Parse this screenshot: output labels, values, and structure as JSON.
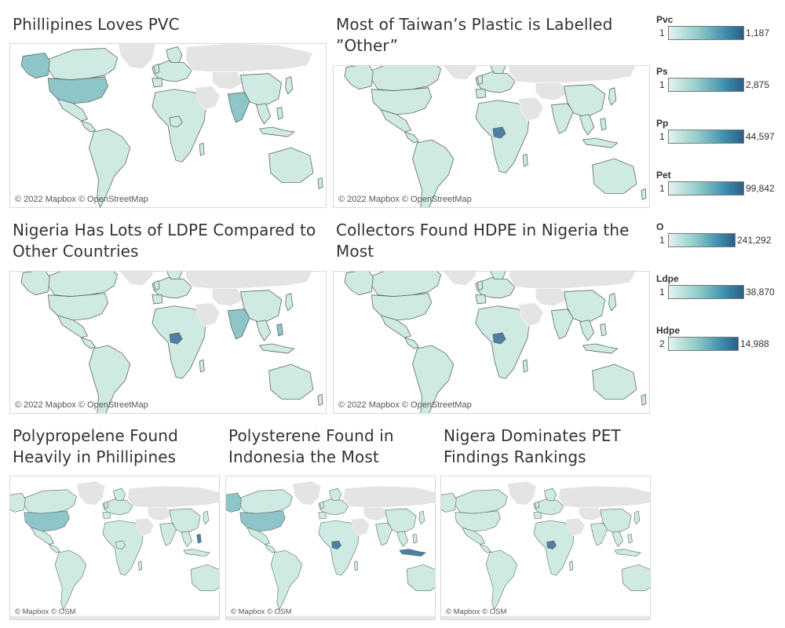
{
  "panels": [
    {
      "title_lines": [
        "Phillipines Loves PVC"
      ],
      "attribution": "© 2022 Mapbox © OpenStreetMap",
      "highlight": [
        "usa",
        "alaska",
        "india"
      ],
      "strong": []
    },
    {
      "title_lines": [
        "Most of Taiwan’s Plastic is Labelled",
        "”Other”"
      ],
      "attribution": "© 2022 Mapbox © OpenStreetMap",
      "highlight": [],
      "strong": [
        "nigeria"
      ]
    },
    {
      "title_lines": [
        "Nigeria Has Lots of LDPE Compared to",
        "Other Countries"
      ],
      "attribution": "© 2022 Mapbox © OpenStreetMap",
      "highlight": [
        "india",
        "philippines"
      ],
      "strong": [
        "nigeria"
      ]
    },
    {
      "title_lines": [
        "Collectors Found HDPE in Nigeria the",
        "Most"
      ],
      "attribution": "© 2022 Mapbox © OpenStreetMap",
      "highlight": [],
      "strong": [
        "nigeria"
      ]
    },
    {
      "title_lines": [
        "Polypropelene Found",
        "Heavily in Phillipines"
      ],
      "attribution": "© Mapbox © OSM",
      "highlight": [
        "usa"
      ],
      "strong": [
        "philippines"
      ]
    },
    {
      "title_lines": [
        "Polysterene Found in",
        "Indonesia the Most"
      ],
      "attribution": "© Mapbox © OSM",
      "highlight": [
        "usa",
        "alaska"
      ],
      "strong": [
        "nigeria",
        "indonesia"
      ]
    },
    {
      "title_lines": [
        "Nigera Dominates PET",
        "Findings Rankings"
      ],
      "attribution": "© Mapbox © OSM",
      "highlight": [],
      "strong": [
        "nigeria"
      ]
    }
  ],
  "legends": [
    {
      "title": "Pvc",
      "min": "1",
      "max": "1,187"
    },
    {
      "title": "Ps",
      "min": "1",
      "max": "2,875"
    },
    {
      "title": "Pp",
      "min": "1",
      "max": "44,597"
    },
    {
      "title": "Pet",
      "min": "1",
      "max": "99,842"
    },
    {
      "title": "O",
      "min": "1",
      "max": "241,292"
    },
    {
      "title": "Ldpe",
      "min": "1",
      "max": "38,870"
    },
    {
      "title": "Hdpe",
      "min": "2",
      "max": "14,988"
    }
  ],
  "colors": {
    "land_base": "#e4e4e4",
    "land_low": "#cfe9e3",
    "land_mid": "#8ec5c9",
    "land_high": "#4d7fa3",
    "border": "#5f6b6b",
    "ocean": "#ffffff"
  }
}
